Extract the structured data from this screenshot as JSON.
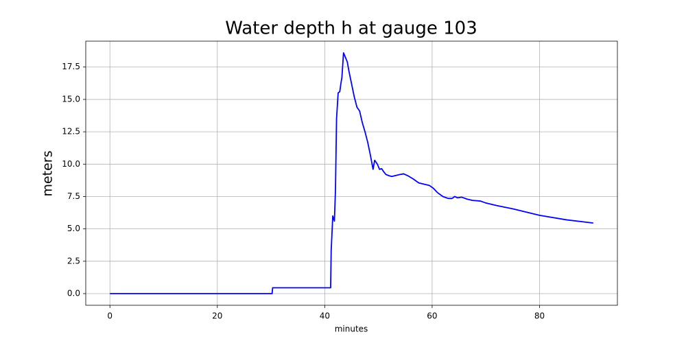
{
  "chart_data": {
    "type": "line",
    "title": "Water depth h at gauge 103",
    "x_label": "minutes",
    "y_label": "meters",
    "x": [
      0,
      30.2,
      30.3,
      41.1,
      41.2,
      41.5,
      41.8,
      42.0,
      42.2,
      42.5,
      42.8,
      43.0,
      43.2,
      43.5,
      43.8,
      44.2,
      44.5,
      45.0,
      45.5,
      46.0,
      46.5,
      47.0,
      47.5,
      48.0,
      48.5,
      49.0,
      49.3,
      49.8,
      50.2,
      50.6,
      51.0,
      51.4,
      52.0,
      52.5,
      53.0,
      54.0,
      54.7,
      55.5,
      56.5,
      57.5,
      58.5,
      59.5,
      60.2,
      61.0,
      62.0,
      63.0,
      63.7,
      64.2,
      64.7,
      65.5,
      66.5,
      67.5,
      69.0,
      70.0,
      72.0,
      75.0,
      80.0,
      85.0,
      90.0
    ],
    "values": [
      0,
      0,
      0.45,
      0.45,
      3.3,
      6.0,
      5.6,
      8.0,
      13.5,
      15.5,
      15.6,
      16.2,
      16.7,
      18.6,
      18.3,
      17.9,
      17.2,
      16.2,
      15.2,
      14.4,
      14.1,
      13.2,
      12.5,
      11.7,
      10.7,
      9.6,
      10.3,
      10.0,
      9.6,
      9.65,
      9.4,
      9.2,
      9.1,
      9.05,
      9.1,
      9.2,
      9.25,
      9.1,
      8.85,
      8.55,
      8.45,
      8.35,
      8.15,
      7.8,
      7.5,
      7.35,
      7.35,
      7.5,
      7.4,
      7.45,
      7.3,
      7.2,
      7.15,
      7.0,
      6.8,
      6.55,
      6.05,
      5.7,
      5.45
    ],
    "color": "#0000ff",
    "xlim": [
      -4.5,
      94.5
    ],
    "xticks": [
      0,
      20,
      40,
      60,
      80
    ],
    "ylim": [
      -0.9,
      19.5
    ],
    "yticks": [
      {
        "value": 0,
        "label": "0.0"
      },
      2.5,
      {
        "value": 5,
        "label": "5.0"
      },
      7.5,
      {
        "value": 10,
        "label": "10.0"
      },
      12.5,
      {
        "value": 15,
        "label": "15.0"
      },
      17.5
    ],
    "grid": true
  }
}
